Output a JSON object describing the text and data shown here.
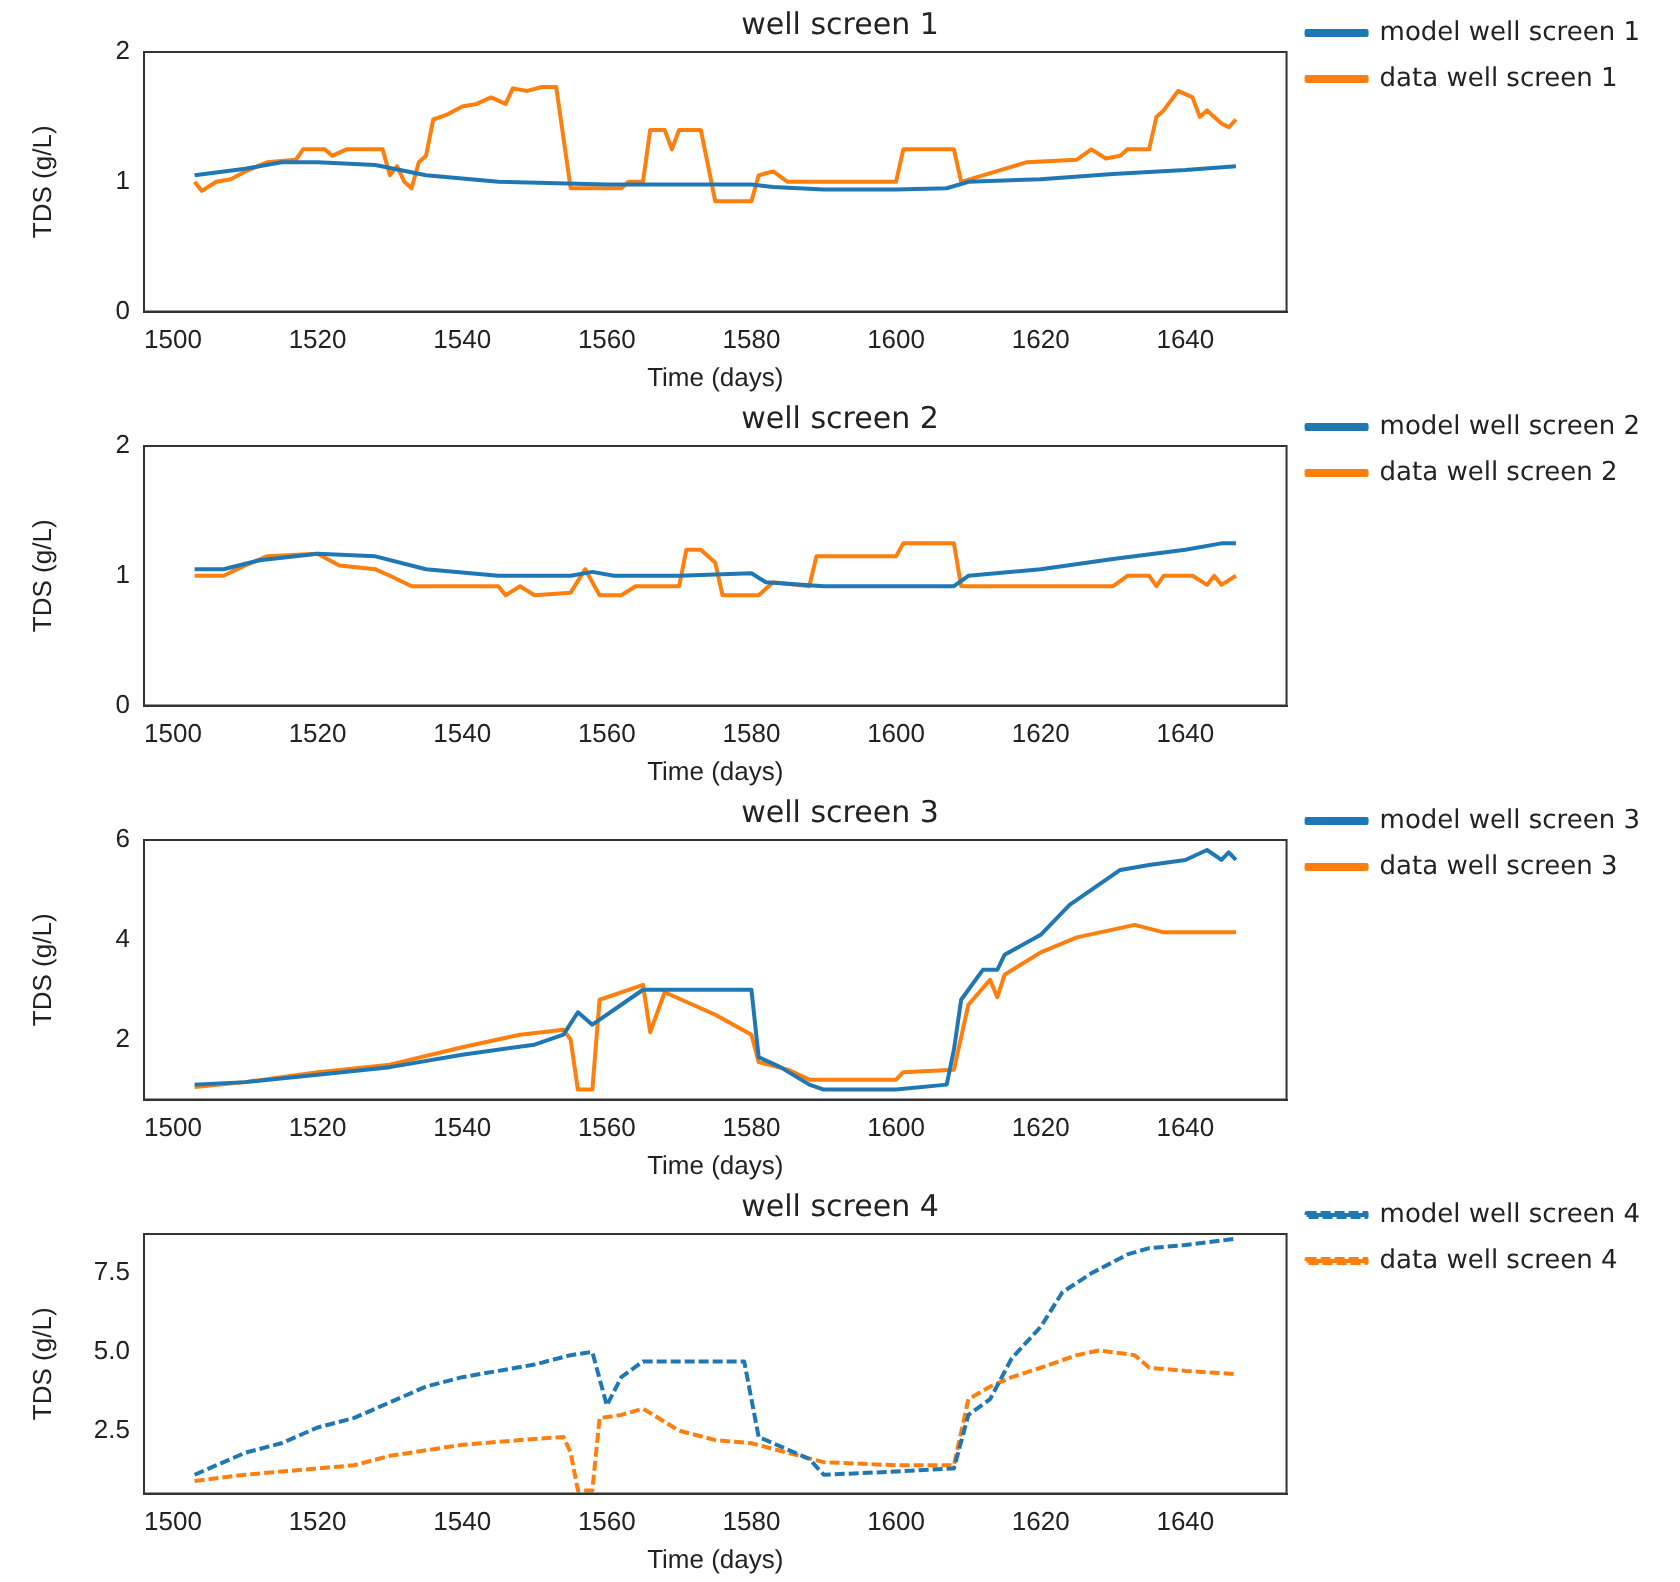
{
  "chart_data": [
    {
      "type": "line",
      "title": "well screen 1",
      "xlabel": "Time (days)",
      "ylabel": "TDS (g/L)",
      "xlim": [
        1496,
        1654
      ],
      "xticks": [
        1500,
        1520,
        1540,
        1560,
        1580,
        1600,
        1620,
        1640
      ],
      "ylim": [
        0,
        2
      ],
      "yticks": [
        0,
        1,
        2
      ],
      "grid": false,
      "legend": "right",
      "marker": "none",
      "line_style": "solid",
      "series": [
        {
          "name": "model well screen 1",
          "color": "#1f77b4",
          "x": [
            1503,
            1510,
            1515,
            1520,
            1528,
            1535,
            1545,
            1560,
            1580,
            1583,
            1590,
            1600,
            1607,
            1610,
            1620,
            1630,
            1640,
            1647
          ],
          "values": [
            1.05,
            1.1,
            1.15,
            1.15,
            1.13,
            1.05,
            1.0,
            0.98,
            0.98,
            0.96,
            0.94,
            0.94,
            0.95,
            1.0,
            1.02,
            1.06,
            1.09,
            1.12
          ]
        },
        {
          "name": "data well screen 1",
          "color": "#ff7f0e",
          "x": [
            1503,
            1504,
            1506,
            1508,
            1510,
            1513,
            1517,
            1518,
            1521,
            1522,
            1524,
            1529,
            1530,
            1531,
            1532,
            1533,
            1534,
            1535,
            1536,
            1538,
            1540,
            1542,
            1544,
            1546,
            1547,
            1549,
            1551,
            1553,
            1555,
            1562,
            1563,
            1565,
            1566,
            1568,
            1569,
            1570,
            1573,
            1575,
            1580,
            1581,
            1583,
            1585,
            1600,
            1601,
            1608,
            1609,
            1612,
            1615,
            1618,
            1625,
            1627,
            1629,
            1631,
            1632,
            1635,
            1636,
            1637,
            1639,
            1641,
            1642,
            1643,
            1645,
            1646,
            1647
          ],
          "values": [
            1.0,
            0.93,
            1.0,
            1.02,
            1.08,
            1.15,
            1.17,
            1.25,
            1.25,
            1.2,
            1.25,
            1.25,
            1.05,
            1.12,
            1.0,
            0.95,
            1.15,
            1.2,
            1.48,
            1.52,
            1.58,
            1.6,
            1.65,
            1.6,
            1.72,
            1.7,
            1.73,
            1.73,
            0.95,
            0.95,
            1.0,
            1.0,
            1.4,
            1.4,
            1.25,
            1.4,
            1.4,
            0.85,
            0.85,
            1.05,
            1.08,
            1.0,
            1.0,
            1.25,
            1.25,
            1.0,
            1.05,
            1.1,
            1.15,
            1.17,
            1.25,
            1.18,
            1.2,
            1.25,
            1.25,
            1.5,
            1.55,
            1.7,
            1.65,
            1.5,
            1.55,
            1.45,
            1.42,
            1.48
          ]
        }
      ]
    },
    {
      "type": "line",
      "title": "well screen 2",
      "xlabel": "Time (days)",
      "ylabel": "TDS (g/L)",
      "xlim": [
        1496,
        1654
      ],
      "xticks": [
        1500,
        1520,
        1540,
        1560,
        1580,
        1600,
        1620,
        1640
      ],
      "ylim": [
        0,
        2
      ],
      "yticks": [
        0,
        1,
        2
      ],
      "grid": false,
      "legend": "right",
      "marker": "none",
      "line_style": "solid",
      "series": [
        {
          "name": "model well screen 2",
          "color": "#1f77b4",
          "x": [
            1503,
            1507,
            1512,
            1520,
            1528,
            1535,
            1545,
            1555,
            1558,
            1561,
            1570,
            1580,
            1582,
            1590,
            1608,
            1610,
            1620,
            1630,
            1640,
            1645,
            1647
          ],
          "values": [
            1.05,
            1.05,
            1.12,
            1.17,
            1.15,
            1.05,
            1.0,
            1.0,
            1.03,
            1.0,
            1.0,
            1.02,
            0.95,
            0.92,
            0.92,
            1.0,
            1.05,
            1.13,
            1.2,
            1.25,
            1.25
          ]
        },
        {
          "name": "data well screen 2",
          "color": "#ff7f0e",
          "x": [
            1503,
            1507,
            1510,
            1513,
            1520,
            1523,
            1528,
            1530,
            1533,
            1545,
            1546,
            1548,
            1550,
            1555,
            1557,
            1559,
            1562,
            1564,
            1570,
            1571,
            1573,
            1575,
            1576,
            1581,
            1583,
            1588,
            1589,
            1600,
            1601,
            1608,
            1609,
            1630,
            1632,
            1635,
            1636,
            1637,
            1641,
            1643,
            1644,
            1645,
            1647
          ],
          "values": [
            1.0,
            1.0,
            1.08,
            1.15,
            1.17,
            1.08,
            1.05,
            1.0,
            0.92,
            0.92,
            0.85,
            0.92,
            0.85,
            0.87,
            1.05,
            0.85,
            0.85,
            0.92,
            0.92,
            1.2,
            1.2,
            1.1,
            0.85,
            0.85,
            0.95,
            0.92,
            1.15,
            1.15,
            1.25,
            1.25,
            0.92,
            0.92,
            1.0,
            1.0,
            0.92,
            1.0,
            1.0,
            0.93,
            1.0,
            0.93,
            1.0
          ]
        }
      ]
    },
    {
      "type": "line",
      "title": "well screen 3",
      "xlabel": "Time (days)",
      "ylabel": "TDS (g/L)",
      "xlim": [
        1496,
        1654
      ],
      "xticks": [
        1500,
        1520,
        1540,
        1560,
        1580,
        1600,
        1620,
        1640
      ],
      "ylim": [
        0.8,
        6
      ],
      "yticks": [
        2,
        4,
        6
      ],
      "grid": false,
      "legend": "right",
      "marker": "none",
      "line_style": "solid",
      "series": [
        {
          "name": "model well screen 3",
          "color": "#1f77b4",
          "x": [
            1503,
            1510,
            1520,
            1530,
            1540,
            1550,
            1554,
            1556,
            1558,
            1562,
            1565,
            1580,
            1581,
            1584,
            1588,
            1590,
            1600,
            1607,
            1608,
            1609,
            1612,
            1614,
            1615,
            1620,
            1624,
            1628,
            1631,
            1635,
            1640,
            1643,
            1645,
            1646,
            1647
          ],
          "values": [
            1.1,
            1.15,
            1.3,
            1.45,
            1.7,
            1.9,
            2.1,
            2.55,
            2.3,
            2.7,
            3.0,
            3.0,
            1.65,
            1.45,
            1.1,
            1.0,
            1.0,
            1.1,
            1.8,
            2.8,
            3.4,
            3.4,
            3.7,
            4.1,
            4.7,
            5.1,
            5.4,
            5.5,
            5.6,
            5.8,
            5.6,
            5.75,
            5.6
          ]
        },
        {
          "name": "data well screen 3",
          "color": "#ff7f0e",
          "x": [
            1503,
            1510,
            1520,
            1530,
            1540,
            1548,
            1554,
            1555,
            1556,
            1558,
            1559,
            1563,
            1565,
            1566,
            1568,
            1575,
            1580,
            1581,
            1585,
            1588,
            1600,
            1601,
            1608,
            1610,
            1613,
            1614,
            1615,
            1620,
            1625,
            1633,
            1637,
            1647
          ],
          "values": [
            1.05,
            1.15,
            1.35,
            1.5,
            1.85,
            2.1,
            2.2,
            2.0,
            1.0,
            1.0,
            2.8,
            3.0,
            3.1,
            2.15,
            2.95,
            2.5,
            2.1,
            1.55,
            1.4,
            1.2,
            1.2,
            1.35,
            1.4,
            2.7,
            3.2,
            2.85,
            3.3,
            3.75,
            4.05,
            4.3,
            4.15,
            4.15
          ]
        }
      ]
    },
    {
      "type": "line",
      "title": "well screen 4",
      "xlabel": "Time (days)",
      "ylabel": "TDS (g/L)",
      "xlim": [
        1496,
        1654
      ],
      "xticks": [
        1500,
        1520,
        1540,
        1560,
        1580,
        1600,
        1620,
        1640
      ],
      "ylim": [
        0.5,
        8.75
      ],
      "yticks": [
        2.5,
        {
          "value": 5,
          "label": "5.0"
        },
        7.5
      ],
      "grid": false,
      "legend": "right",
      "marker": "none",
      "line_style": "dashed",
      "series": [
        {
          "name": "model well screen 4",
          "color": "#1f77b4",
          "x": [
            1503,
            1510,
            1515,
            1520,
            1525,
            1530,
            1535,
            1540,
            1545,
            1550,
            1555,
            1558,
            1560,
            1562,
            1565,
            1579,
            1581,
            1585,
            1588,
            1590,
            1600,
            1608,
            1610,
            1613,
            1616,
            1620,
            1623,
            1627,
            1632,
            1635,
            1640,
            1647
          ],
          "values": [
            1.1,
            1.8,
            2.1,
            2.6,
            2.9,
            3.4,
            3.9,
            4.2,
            4.4,
            4.6,
            4.9,
            5.0,
            3.3,
            4.2,
            4.7,
            4.7,
            2.3,
            1.9,
            1.6,
            1.1,
            1.2,
            1.3,
            3.0,
            3.5,
            4.8,
            5.8,
            6.9,
            7.5,
            8.1,
            8.3,
            8.4,
            8.6
          ]
        },
        {
          "name": "data well screen 4",
          "color": "#ff7f0e",
          "x": [
            1503,
            1510,
            1520,
            1525,
            1530,
            1540,
            1548,
            1554,
            1555,
            1556,
            1558,
            1559,
            1562,
            1565,
            1570,
            1575,
            1580,
            1585,
            1590,
            1600,
            1608,
            1610,
            1613,
            1616,
            1620,
            1625,
            1628,
            1633,
            1635,
            1640,
            1647
          ],
          "values": [
            0.9,
            1.1,
            1.3,
            1.4,
            1.7,
            2.05,
            2.2,
            2.3,
            1.8,
            0.6,
            0.6,
            2.9,
            3.0,
            3.2,
            2.5,
            2.2,
            2.1,
            1.8,
            1.5,
            1.4,
            1.4,
            3.5,
            3.9,
            4.2,
            4.5,
            4.9,
            5.05,
            4.9,
            4.5,
            4.4,
            4.3
          ]
        }
      ]
    }
  ]
}
